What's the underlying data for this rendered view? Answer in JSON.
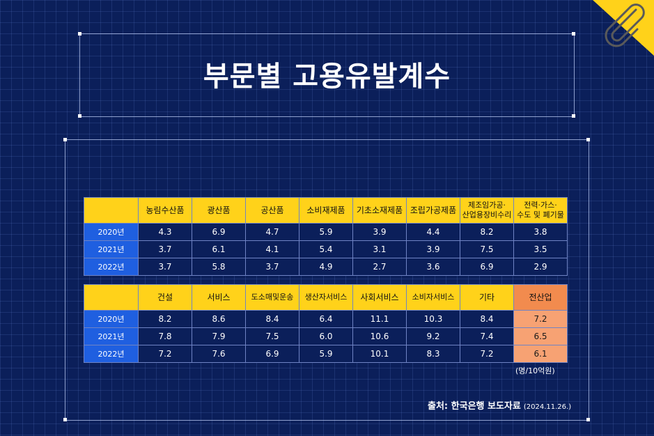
{
  "title": "부문별 고용유발계수",
  "table_top": {
    "headers": [
      "농림수산품",
      "광산품",
      "공산품",
      "소비재제품",
      "기초소재제품",
      "조립가공제품",
      "제조임가공·\n산업용장비수리",
      "전력·가스·\n수도 및 폐기물"
    ],
    "rows": [
      {
        "year": "2020년",
        "values": [
          "4.3",
          "6.9",
          "4.7",
          "5.9",
          "3.9",
          "4.4",
          "8.2",
          "3.8"
        ]
      },
      {
        "year": "2021년",
        "values": [
          "3.7",
          "6.1",
          "4.1",
          "5.4",
          "3.1",
          "3.9",
          "7.5",
          "3.5"
        ]
      },
      {
        "year": "2022년",
        "values": [
          "3.7",
          "5.8",
          "3.7",
          "4.9",
          "2.7",
          "3.6",
          "6.9",
          "2.9"
        ]
      }
    ]
  },
  "table_bottom": {
    "headers": [
      "건설",
      "서비스",
      "도소매및운송",
      "생산자서비스",
      "사회서비스",
      "소비자서비스",
      "기타",
      "전산업"
    ],
    "rows": [
      {
        "year": "2020년",
        "values": [
          "8.2",
          "8.6",
          "8.4",
          "6.4",
          "11.1",
          "10.3",
          "8.4",
          "7.2"
        ]
      },
      {
        "year": "2021년",
        "values": [
          "7.8",
          "7.9",
          "7.5",
          "6.0",
          "10.6",
          "9.2",
          "7.4",
          "6.5"
        ]
      },
      {
        "year": "2022년",
        "values": [
          "7.2",
          "7.6",
          "6.9",
          "5.9",
          "10.1",
          "8.3",
          "7.2",
          "6.1"
        ]
      }
    ]
  },
  "unit": "(명/10억원)",
  "source": {
    "label": "출처: 한국은행 보도자료",
    "date": "(2024.11.26.)"
  },
  "icons": {
    "corner": "paperclip-icon"
  },
  "colors": {
    "background": "#0b1f5a",
    "header": "#ffd21a",
    "year": "#1f5fe0",
    "highlight_header": "#f28b4e",
    "highlight_cell": "#f7a273"
  }
}
